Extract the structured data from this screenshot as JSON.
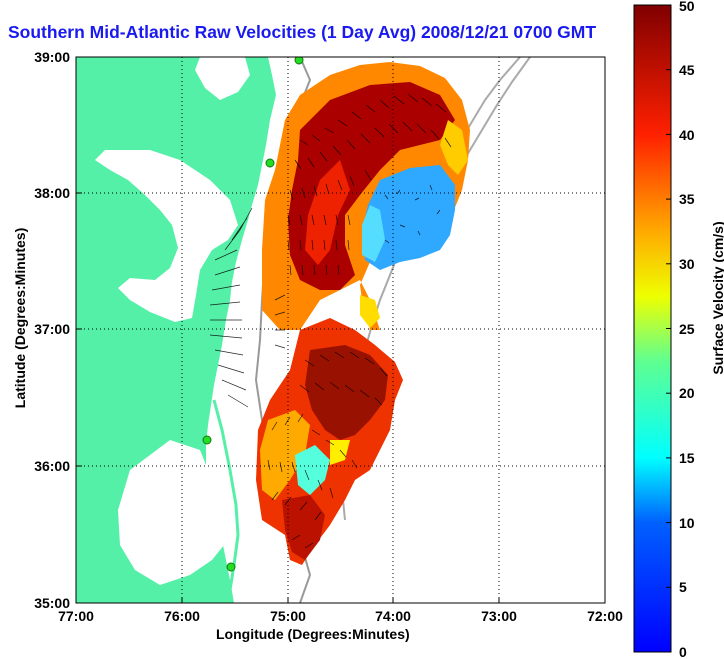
{
  "title": "Southern Mid-Atlantic Raw Velocities (1 Day Avg) 2008/12/21 0700 GMT",
  "xlabel": "Longitude (Degrees:Minutes)",
  "ylabel": "Latitude (Degrees:Minutes)",
  "colorbar_label": "Surface Velocity (cm/s)",
  "x_ticks": [
    "77:00",
    "76:00",
    "75:00",
    "74:00",
    "73:00",
    "72:00"
  ],
  "y_ticks": [
    "39:00",
    "38:00",
    "37:00",
    "36:00",
    "35:00"
  ],
  "cb_ticks": [
    "50",
    "45",
    "40",
    "35",
    "30",
    "25",
    "20",
    "15",
    "10",
    "5",
    "0"
  ],
  "colors": {
    "land": "#55f0a8",
    "title": "#1a1af0",
    "site_marker": "#22dd22"
  },
  "chart_data": {
    "type": "heatmap",
    "title": "Southern Mid-Atlantic Raw Velocities (1 Day Avg) 2008/12/21 0700 GMT",
    "xlabel": "Longitude (Degrees:Minutes)",
    "ylabel": "Latitude (Degrees:Minutes)",
    "xlim": [
      -77,
      -72
    ],
    "ylim": [
      35,
      39
    ],
    "colorbar": {
      "label": "Surface Velocity (cm/s)",
      "range": [
        0,
        50
      ],
      "colormap": "jet"
    },
    "grid": true,
    "velocity_field": [
      {
        "lon": -74.4,
        "lat": 38.55,
        "speed": 48,
        "dir": "southwest"
      },
      {
        "lon": -73.9,
        "lat": 38.5,
        "speed": 45,
        "dir": "southwest"
      },
      {
        "lon": -74.6,
        "lat": 37.7,
        "speed": 46,
        "dir": "south"
      },
      {
        "lon": -73.7,
        "lat": 37.8,
        "speed": 8,
        "dir": "variable"
      },
      {
        "lon": -74.8,
        "lat": 37.3,
        "speed": 48,
        "dir": "south"
      },
      {
        "lon": -74.4,
        "lat": 36.5,
        "speed": 47,
        "dir": "southeast"
      },
      {
        "lon": -74.8,
        "lat": 36.1,
        "speed": 15,
        "dir": "variable"
      },
      {
        "lon": -75.0,
        "lat": 35.6,
        "speed": 35,
        "dir": "northeast"
      }
    ],
    "sites": [
      {
        "lon": -75.05,
        "lat": 39.0
      },
      {
        "lon": -75.2,
        "lat": 38.25
      },
      {
        "lon": -75.75,
        "lat": 36.2
      },
      {
        "lon": -75.55,
        "lat": 35.25
      }
    ]
  }
}
